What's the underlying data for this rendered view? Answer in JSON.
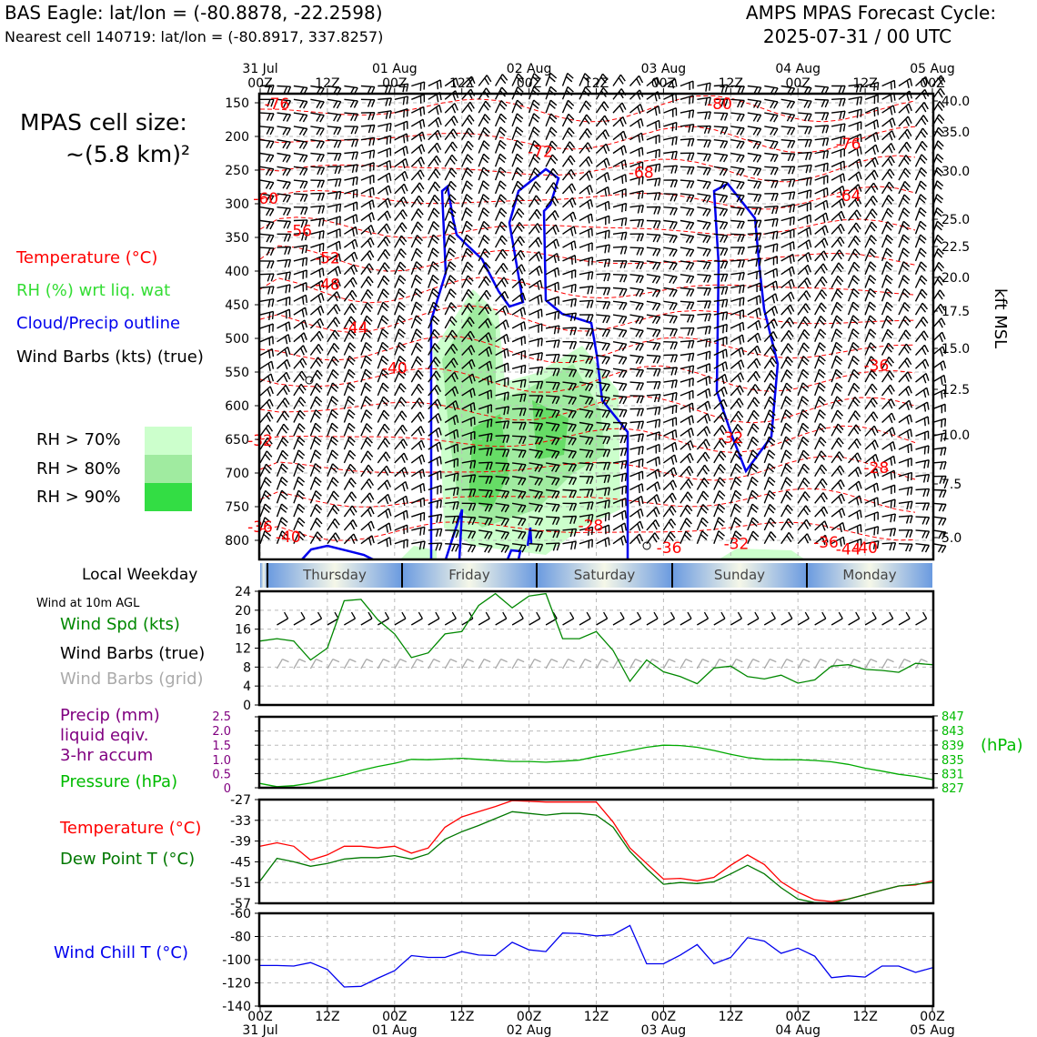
{
  "header": {
    "station_title": "BAS Eagle: lat/lon = (-80.8878, -22.2598)",
    "nearest_cell": "Nearest cell 140719: lat/lon = (-80.8917, 337.8257)",
    "model_title": "AMPS MPAS Forecast Cycle:",
    "cycle": "2025-07-31 / 00 UTC"
  },
  "left_legend": {
    "cell_size_line1": "MPAS cell size:",
    "cell_size_line2": "~(5.8 km)²",
    "temperature": "Temperature (°C)",
    "rh": "RH (%) wrt liq. wat",
    "cloud": "Cloud/Precip outline",
    "wind_barbs": "Wind Barbs (kts) (true)",
    "rh70": "RH > 70%",
    "rh80": "RH > 80%",
    "rh90": "RH > 90%"
  },
  "colors": {
    "temperature": "#ff0000",
    "rh_legend": "#33dd33",
    "cloud": "#0000ee",
    "rh70": "#ccffcc",
    "rh80": "#a0eba0",
    "rh90": "#33dd44",
    "wind_speed": "#008800",
    "precip": "#800080",
    "pressure": "#00aa00",
    "dew_point": "#007700",
    "wind_chill": "#0000ee",
    "grid_barbs": "#aaaaaa"
  },
  "top_time_axis": {
    "labels": [
      {
        "top": "31 Jul",
        "bottom": "00Z"
      },
      {
        "top": "",
        "bottom": "12Z"
      },
      {
        "top": "01 Aug",
        "bottom": "00Z"
      },
      {
        "top": "",
        "bottom": "12Z"
      },
      {
        "top": "02 Aug",
        "bottom": "00Z"
      },
      {
        "top": "",
        "bottom": "12Z"
      },
      {
        "top": "03 Aug",
        "bottom": "00Z"
      },
      {
        "top": "",
        "bottom": "12Z"
      },
      {
        "top": "04 Aug",
        "bottom": "00Z"
      },
      {
        "top": "",
        "bottom": "12Z"
      },
      {
        "top": "05 Aug",
        "bottom": "00Z"
      }
    ]
  },
  "bottom_time_axis": {
    "labels": [
      {
        "top": "00Z",
        "bottom": "31 Jul"
      },
      {
        "top": "12Z",
        "bottom": ""
      },
      {
        "top": "00Z",
        "bottom": "01 Aug"
      },
      {
        "top": "12Z",
        "bottom": ""
      },
      {
        "top": "00Z",
        "bottom": "02 Aug"
      },
      {
        "top": "12Z",
        "bottom": ""
      },
      {
        "top": "00Z",
        "bottom": "03 Aug"
      },
      {
        "top": "12Z",
        "bottom": ""
      },
      {
        "top": "00Z",
        "bottom": "04 Aug"
      },
      {
        "top": "12Z",
        "bottom": ""
      },
      {
        "top": "00Z",
        "bottom": "05 Aug"
      }
    ]
  },
  "weekday_bar": {
    "label": "Local Weekday",
    "days": [
      "Thursday",
      "Friday",
      "Saturday",
      "Sunday",
      "Monday"
    ]
  },
  "panel_labels": {
    "wind_at": "Wind at 10m AGL",
    "wind_spd": "Wind Spd (kts)",
    "wind_barbs_true": "Wind Barbs (true)",
    "wind_barbs_grid": "Wind Barbs (grid)",
    "precip1": "Precip (mm)",
    "precip2": "liquid eqiv.",
    "precip3": "3-hr accum",
    "pressure": "Pressure (hPa)",
    "pressure_unit": "(hPa)",
    "temperature": "Temperature (°C)",
    "dew_point": "Dew Point T (°C)",
    "wind_chill": "Wind Chill T (°C)",
    "kft_msl": "kft MSL"
  },
  "chart_data": [
    {
      "type": "heatmap",
      "name_note": "vertical time-section",
      "x": [
        "31 Jul 00Z",
        "05 Aug 00Z"
      ],
      "xlim_hours": [
        0,
        120
      ],
      "y_pressure_ticks": [
        150,
        200,
        250,
        300,
        350,
        400,
        450,
        500,
        550,
        600,
        650,
        700,
        750,
        800
      ],
      "y_height_ticks_kft": [
        "40.0",
        "35.0",
        "30.0",
        "25.0",
        "22.5",
        "20.0",
        "17.5",
        "15.0",
        "12.5",
        "10.0",
        "7.5",
        "5.0"
      ],
      "temperature_labels": [
        {
          "text": "-76",
          "hour": 3,
          "p": 157
        },
        {
          "text": "-80",
          "hour": 82,
          "p": 157
        },
        {
          "text": "-72",
          "hour": 50,
          "p": 228
        },
        {
          "text": "-68",
          "hour": 68,
          "p": 259
        },
        {
          "text": "-76",
          "hour": 105,
          "p": 216
        },
        {
          "text": "-60",
          "hour": 1,
          "p": 297
        },
        {
          "text": "-64",
          "hour": 105,
          "p": 293
        },
        {
          "text": "-56",
          "hour": 7,
          "p": 345
        },
        {
          "text": "-52",
          "hour": 12,
          "p": 386
        },
        {
          "text": "-48",
          "hour": 12,
          "p": 425
        },
        {
          "text": "-44",
          "hour": 17,
          "p": 489
        },
        {
          "text": "-40",
          "hour": 24,
          "p": 549
        },
        {
          "text": "-36",
          "hour": 110,
          "p": 545
        },
        {
          "text": "-32",
          "hour": 0,
          "p": 657
        },
        {
          "text": "-32",
          "hour": 84,
          "p": 653
        },
        {
          "text": "-28",
          "hour": 110,
          "p": 697
        },
        {
          "text": "-36",
          "hour": 0,
          "p": 785
        },
        {
          "text": "-40",
          "hour": 5,
          "p": 800
        },
        {
          "text": "-28",
          "hour": 59,
          "p": 783
        },
        {
          "text": "-36",
          "hour": 73,
          "p": 816
        },
        {
          "text": "-32",
          "hour": 85,
          "p": 810
        },
        {
          "text": "-36",
          "hour": 101,
          "p": 808
        },
        {
          "text": "-44",
          "hour": 105,
          "p": 818
        },
        {
          "text": "-40",
          "hour": 108,
          "p": 816
        }
      ]
    },
    {
      "type": "line",
      "name_note": "10 m wind speed",
      "x_hours": [
        0,
        3,
        6,
        9,
        12,
        15,
        18,
        21,
        24,
        27,
        30,
        33,
        36,
        39,
        42,
        45,
        48,
        51,
        54,
        57,
        60,
        63,
        66,
        69,
        72,
        75,
        78,
        81,
        84,
        87,
        90,
        93,
        96,
        99,
        102,
        105,
        108,
        111,
        114,
        117,
        120
      ],
      "series": [
        {
          "name": "Wind Spd (kts)",
          "values": [
            13.5,
            14,
            13.5,
            9.5,
            12,
            22,
            22.3,
            18,
            15,
            10,
            11,
            15,
            15.5,
            21,
            23.5,
            20.5,
            23,
            23.5,
            14,
            14,
            15.5,
            11.5,
            5,
            9.5,
            7,
            6,
            4.5,
            7.8,
            8.2,
            6,
            5.5,
            6.3,
            4.6,
            5.3,
            8.2,
            8.5,
            7.5,
            7.3,
            6.9,
            8.8,
            8.5
          ]
        }
      ],
      "ylim": [
        0,
        24
      ],
      "yticks": [
        0,
        4,
        8,
        12,
        16,
        20,
        24
      ]
    },
    {
      "type": "line",
      "name_note": "precip and pressure",
      "x_hours": [
        0,
        3,
        6,
        9,
        12,
        15,
        18,
        21,
        24,
        27,
        30,
        33,
        36,
        39,
        42,
        45,
        48,
        51,
        54,
        57,
        60,
        63,
        66,
        69,
        72,
        75,
        78,
        81,
        84,
        87,
        90,
        93,
        96,
        99,
        102,
        105,
        108,
        111,
        114,
        117,
        120
      ],
      "series": [
        {
          "name": "Pressure (hPa)",
          "values": [
            828.2,
            827.3,
            827.6,
            828.3,
            829.5,
            830.6,
            831.9,
            833.0,
            833.9,
            835.0,
            834.9,
            835.1,
            835.3,
            835.0,
            834.7,
            834.4,
            834.4,
            834.2,
            834.5,
            834.8,
            835.8,
            836.6,
            837.5,
            838.4,
            839.0,
            838.9,
            838.4,
            837.5,
            836.4,
            835.5,
            835.0,
            834.9,
            834.9,
            834.7,
            834.3,
            833.6,
            832.5,
            831.7,
            830.8,
            830.2,
            829.3
          ]
        }
      ],
      "y_precip_ticks": [
        "0",
        "0.5",
        "1.0",
        "1.5",
        "2.0",
        "2.5"
      ],
      "y_pressure_ticks": [
        "827",
        "831",
        "835",
        "839",
        "843",
        "847"
      ],
      "ylim_pressure": [
        827,
        847
      ]
    },
    {
      "type": "line",
      "name_note": "temperature and dew point",
      "x_hours": [
        0,
        3,
        6,
        9,
        12,
        15,
        18,
        21,
        24,
        27,
        30,
        33,
        36,
        39,
        42,
        45,
        48,
        51,
        54,
        57,
        60,
        63,
        66,
        69,
        72,
        75,
        78,
        81,
        84,
        87,
        90,
        93,
        96,
        99,
        102,
        105,
        108,
        111,
        114,
        117,
        120
      ],
      "series": [
        {
          "name": "Temperature (°C)",
          "values": [
            -40.5,
            -39.5,
            -40.5,
            -44.5,
            -43,
            -40.5,
            -40.5,
            -41,
            -40.5,
            -42.5,
            -41,
            -35,
            -32,
            -30.5,
            -29,
            -27.3,
            -27.5,
            -27.7,
            -27.7,
            -27.7,
            -27.7,
            -33.5,
            -41,
            -45.5,
            -50,
            -49.8,
            -50.5,
            -49.5,
            -46,
            -43,
            -45.8,
            -50.8,
            -53.8,
            -56,
            -56.5,
            -55.8,
            -54.5,
            -53.2,
            -52,
            -51.7,
            -50.5
          ]
        },
        {
          "name": "Dew Point T (°C)",
          "values": [
            -50.5,
            -44,
            -45,
            -46.3,
            -45.5,
            -44.2,
            -43.8,
            -43.8,
            -43.2,
            -44.2,
            -42.7,
            -38.5,
            -36.3,
            -34.5,
            -32.5,
            -30.5,
            -31,
            -31.5,
            -31,
            -31,
            -31.5,
            -35,
            -42,
            -47,
            -51.5,
            -51,
            -51.3,
            -50.8,
            -48.5,
            -46,
            -48.5,
            -52.5,
            -55.8,
            -56.8,
            -57,
            -55.8,
            -54.5,
            -53.2,
            -52,
            -51.5,
            -51
          ]
        }
      ],
      "ylim": [
        -57,
        -27
      ],
      "yticks": [
        -57,
        -51,
        -45,
        -39,
        -33,
        -27
      ]
    },
    {
      "type": "line",
      "name_note": "wind chill",
      "x_hours": [
        0,
        3,
        6,
        9,
        12,
        15,
        18,
        21,
        24,
        27,
        30,
        33,
        36,
        39,
        42,
        45,
        48,
        51,
        54,
        57,
        60,
        63,
        66,
        69,
        72,
        75,
        78,
        81,
        84,
        87,
        90,
        93,
        96,
        99,
        102,
        105,
        108,
        111,
        114,
        117,
        120
      ],
      "series": [
        {
          "name": "Wind Chill T (°C)",
          "values": [
            -105,
            -105,
            -105.5,
            -102.5,
            -108.5,
            -123.5,
            -123,
            -116,
            -109.5,
            -96.5,
            -98,
            -98,
            -93,
            -96,
            -96.5,
            -85,
            -91.5,
            -93,
            -77,
            -77.5,
            -79.5,
            -78.5,
            -70.5,
            -103.5,
            -103.5,
            -96,
            -87,
            -103.5,
            -98,
            -81,
            -84,
            -94.5,
            -90,
            -97,
            -115.5,
            -114,
            -115,
            -105.5,
            -105.5,
            -111,
            -107
          ]
        }
      ],
      "ylim": [
        -140,
        -60
      ],
      "yticks": [
        -140,
        -120,
        -100,
        -80,
        -60
      ]
    }
  ]
}
